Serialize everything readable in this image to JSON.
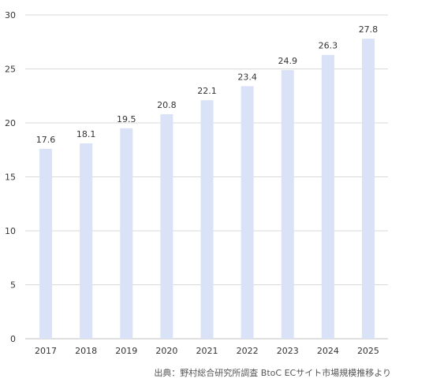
{
  "chart_data": {
    "type": "bar",
    "categories": [
      "2017",
      "2018",
      "2019",
      "2020",
      "2021",
      "2022",
      "2023",
      "2024",
      "2025"
    ],
    "values": [
      17.6,
      18.1,
      19.5,
      20.8,
      22.1,
      23.4,
      24.9,
      26.3,
      27.8
    ],
    "data_labels": [
      "17.6",
      "18.1",
      "19.5",
      "20.8",
      "22.1",
      "23.4",
      "24.9",
      "26.3",
      "27.8"
    ],
    "title": "",
    "xlabel": "",
    "ylabel": "",
    "ylim": [
      0,
      30
    ],
    "yticks": [
      "0",
      "5",
      "10",
      "15",
      "20",
      "25",
      "30"
    ],
    "grid": true,
    "legend": "none",
    "bar_color": "#d9e2f6",
    "grid_color": "#d9d9d9",
    "source": "出典：野村総合研究所調査 BtoC ECサイト市場規模推移より"
  }
}
